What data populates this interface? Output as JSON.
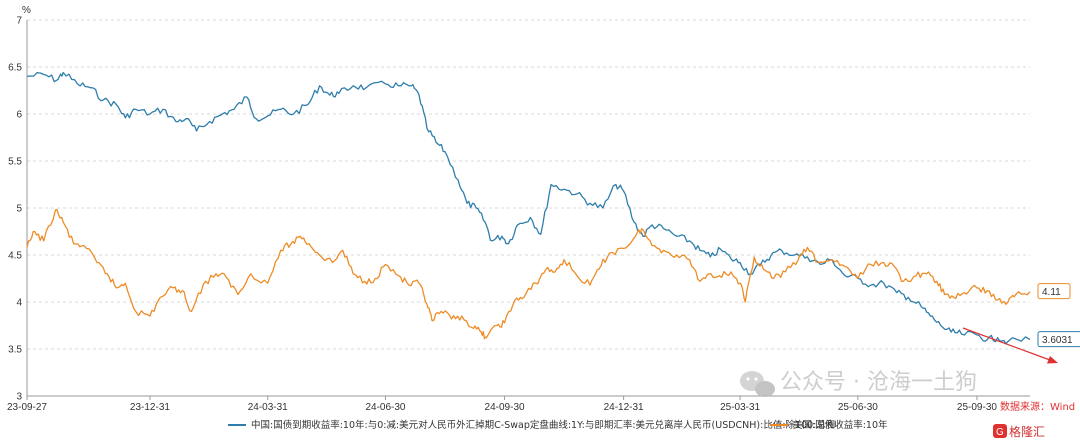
{
  "chart_data": {
    "type": "line",
    "ylabel": "%",
    "ylim": [
      3,
      7
    ],
    "yticks": [
      "3",
      "3.5",
      "4",
      "4.5",
      "5",
      "5.5",
      "6",
      "6.5",
      "7"
    ],
    "x_range": [
      "2023-09-27",
      "2025-11-10"
    ],
    "xticks": [
      {
        "date": "2023-09-27",
        "label": "23-09-27"
      },
      {
        "date": "2023-12-31",
        "label": "23-12-31"
      },
      {
        "date": "2024-03-31",
        "label": "24-03-31"
      },
      {
        "date": "2024-06-30",
        "label": "24-06-30"
      },
      {
        "date": "2024-09-30",
        "label": "24-09-30"
      },
      {
        "date": "2024-12-31",
        "label": "24-12-31"
      },
      {
        "date": "2025-03-31",
        "label": "25-03-31"
      },
      {
        "date": "2025-06-30",
        "label": "25-06-30"
      },
      {
        "date": "2025-09-30",
        "label": "25-09-30"
      }
    ],
    "grid": "horizontal",
    "legend_position": "bottom",
    "series": [
      {
        "name": "中国:国债到期收益率:10年:与0:减:美元对人民币外汇掉期C-Swap定盘曲线:1Y:与即期汇率:美元兑离岸人民币(USDCNH):比值:除100:总和",
        "color": "#2e7eab",
        "end_value": "3.6031",
        "points": [
          [
            "2023-09-27",
            6.4
          ],
          [
            "2023-10-10",
            6.42
          ],
          [
            "2023-10-20",
            6.36
          ],
          [
            "2023-10-25",
            6.44
          ],
          [
            "2023-11-05",
            6.32
          ],
          [
            "2023-11-15",
            6.28
          ],
          [
            "2023-11-25",
            6.15
          ],
          [
            "2023-12-05",
            6.1
          ],
          [
            "2023-12-12",
            5.96
          ],
          [
            "2023-12-20",
            6.05
          ],
          [
            "2023-12-31",
            6.0
          ],
          [
            "2024-01-10",
            6.05
          ],
          [
            "2024-01-20",
            5.92
          ],
          [
            "2024-01-28",
            5.95
          ],
          [
            "2024-02-05",
            5.82
          ],
          [
            "2024-02-15",
            5.92
          ],
          [
            "2024-02-25",
            6.0
          ],
          [
            "2024-03-05",
            6.05
          ],
          [
            "2024-03-15",
            6.18
          ],
          [
            "2024-03-22",
            5.95
          ],
          [
            "2024-03-31",
            5.98
          ],
          [
            "2024-04-10",
            6.05
          ],
          [
            "2024-04-20",
            6.0
          ],
          [
            "2024-05-01",
            6.1
          ],
          [
            "2024-05-10",
            6.3
          ],
          [
            "2024-05-18",
            6.2
          ],
          [
            "2024-05-25",
            6.22
          ],
          [
            "2024-06-05",
            6.3
          ],
          [
            "2024-06-15",
            6.28
          ],
          [
            "2024-06-30",
            6.32
          ],
          [
            "2024-07-10",
            6.3
          ],
          [
            "2024-07-20",
            6.3
          ],
          [
            "2024-07-26",
            6.2
          ],
          [
            "2024-08-01",
            5.85
          ],
          [
            "2024-08-08",
            5.7
          ],
          [
            "2024-08-15",
            5.6
          ],
          [
            "2024-08-25",
            5.3
          ],
          [
            "2024-09-01",
            5.05
          ],
          [
            "2024-09-08",
            5.0
          ],
          [
            "2024-09-15",
            4.85
          ],
          [
            "2024-09-20",
            4.65
          ],
          [
            "2024-09-28",
            4.7
          ],
          [
            "2024-10-03",
            4.62
          ],
          [
            "2024-10-10",
            4.82
          ],
          [
            "2024-10-20",
            4.9
          ],
          [
            "2024-10-28",
            4.72
          ],
          [
            "2024-11-05",
            5.25
          ],
          [
            "2024-11-15",
            5.2
          ],
          [
            "2024-11-25",
            5.15
          ],
          [
            "2024-12-05",
            5.05
          ],
          [
            "2024-12-15",
            5.0
          ],
          [
            "2024-12-25",
            5.25
          ],
          [
            "2024-12-31",
            5.18
          ],
          [
            "2025-01-08",
            4.85
          ],
          [
            "2025-01-15",
            4.7
          ],
          [
            "2025-01-22",
            4.82
          ],
          [
            "2025-01-31",
            4.78
          ],
          [
            "2025-02-10",
            4.7
          ],
          [
            "2025-02-20",
            4.65
          ],
          [
            "2025-02-28",
            4.55
          ],
          [
            "2025-03-08",
            4.48
          ],
          [
            "2025-03-16",
            4.56
          ],
          [
            "2025-03-24",
            4.46
          ],
          [
            "2025-03-31",
            4.42
          ],
          [
            "2025-04-08",
            4.3
          ],
          [
            "2025-04-16",
            4.4
          ],
          [
            "2025-04-24",
            4.5
          ],
          [
            "2025-05-02",
            4.55
          ],
          [
            "2025-05-12",
            4.5
          ],
          [
            "2025-05-22",
            4.48
          ],
          [
            "2025-06-01",
            4.4
          ],
          [
            "2025-06-10",
            4.45
          ],
          [
            "2025-06-20",
            4.28
          ],
          [
            "2025-06-30",
            4.25
          ],
          [
            "2025-07-10",
            4.18
          ],
          [
            "2025-07-20",
            4.2
          ],
          [
            "2025-07-30",
            4.1
          ],
          [
            "2025-08-08",
            4.05
          ],
          [
            "2025-08-18",
            3.95
          ],
          [
            "2025-08-25",
            3.85
          ],
          [
            "2025-09-02",
            3.75
          ],
          [
            "2025-09-10",
            3.68
          ],
          [
            "2025-09-18",
            3.66
          ],
          [
            "2025-09-30",
            3.65
          ],
          [
            "2025-10-08",
            3.6
          ],
          [
            "2025-10-16",
            3.62
          ],
          [
            "2025-10-24",
            3.58
          ],
          [
            "2025-11-10",
            3.6
          ]
        ]
      },
      {
        "name": "美国:国债收益率:10年",
        "color": "#ed8c26",
        "end_value": "4.11",
        "points": [
          [
            "2023-09-27",
            4.58
          ],
          [
            "2023-10-03",
            4.75
          ],
          [
            "2023-10-10",
            4.65
          ],
          [
            "2023-10-19",
            4.98
          ],
          [
            "2023-10-25",
            4.85
          ],
          [
            "2023-11-02",
            4.62
          ],
          [
            "2023-11-10",
            4.6
          ],
          [
            "2023-11-20",
            4.42
          ],
          [
            "2023-11-28",
            4.3
          ],
          [
            "2023-12-05",
            4.15
          ],
          [
            "2023-12-12",
            4.2
          ],
          [
            "2023-12-20",
            3.9
          ],
          [
            "2023-12-31",
            3.85
          ],
          [
            "2024-01-08",
            4.05
          ],
          [
            "2024-01-18",
            4.15
          ],
          [
            "2024-01-25",
            4.12
          ],
          [
            "2024-02-01",
            3.9
          ],
          [
            "2024-02-10",
            4.18
          ],
          [
            "2024-02-20",
            4.3
          ],
          [
            "2024-02-28",
            4.26
          ],
          [
            "2024-03-08",
            4.08
          ],
          [
            "2024-03-18",
            4.3
          ],
          [
            "2024-03-31",
            4.2
          ],
          [
            "2024-04-10",
            4.55
          ],
          [
            "2024-04-18",
            4.62
          ],
          [
            "2024-04-25",
            4.7
          ],
          [
            "2024-05-02",
            4.62
          ],
          [
            "2024-05-10",
            4.5
          ],
          [
            "2024-05-20",
            4.42
          ],
          [
            "2024-05-28",
            4.55
          ],
          [
            "2024-06-05",
            4.3
          ],
          [
            "2024-06-14",
            4.22
          ],
          [
            "2024-06-22",
            4.25
          ],
          [
            "2024-06-30",
            4.4
          ],
          [
            "2024-07-10",
            4.28
          ],
          [
            "2024-07-18",
            4.18
          ],
          [
            "2024-07-26",
            4.2
          ],
          [
            "2024-08-01",
            3.98
          ],
          [
            "2024-08-05",
            3.8
          ],
          [
            "2024-08-12",
            3.9
          ],
          [
            "2024-08-20",
            3.82
          ],
          [
            "2024-08-28",
            3.85
          ],
          [
            "2024-09-06",
            3.72
          ],
          [
            "2024-09-12",
            3.68
          ],
          [
            "2024-09-16",
            3.62
          ],
          [
            "2024-09-24",
            3.75
          ],
          [
            "2024-09-30",
            3.78
          ],
          [
            "2024-10-08",
            4.02
          ],
          [
            "2024-10-15",
            4.05
          ],
          [
            "2024-10-24",
            4.2
          ],
          [
            "2024-11-01",
            4.35
          ],
          [
            "2024-11-08",
            4.32
          ],
          [
            "2024-11-15",
            4.45
          ],
          [
            "2024-11-25",
            4.28
          ],
          [
            "2024-12-05",
            4.18
          ],
          [
            "2024-12-12",
            4.35
          ],
          [
            "2024-12-20",
            4.52
          ],
          [
            "2024-12-31",
            4.57
          ],
          [
            "2025-01-08",
            4.68
          ],
          [
            "2025-01-14",
            4.78
          ],
          [
            "2025-01-22",
            4.6
          ],
          [
            "2025-01-31",
            4.55
          ],
          [
            "2025-02-10",
            4.5
          ],
          [
            "2025-02-20",
            4.45
          ],
          [
            "2025-02-28",
            4.22
          ],
          [
            "2025-03-07",
            4.3
          ],
          [
            "2025-03-15",
            4.28
          ],
          [
            "2025-03-24",
            4.32
          ],
          [
            "2025-03-31",
            4.2
          ],
          [
            "2025-04-04",
            4.0
          ],
          [
            "2025-04-11",
            4.48
          ],
          [
            "2025-04-18",
            4.35
          ],
          [
            "2025-04-26",
            4.25
          ],
          [
            "2025-05-05",
            4.32
          ],
          [
            "2025-05-15",
            4.45
          ],
          [
            "2025-05-22",
            4.58
          ],
          [
            "2025-05-30",
            4.42
          ],
          [
            "2025-06-10",
            4.45
          ],
          [
            "2025-06-20",
            4.38
          ],
          [
            "2025-06-30",
            4.25
          ],
          [
            "2025-07-10",
            4.4
          ],
          [
            "2025-07-20",
            4.42
          ],
          [
            "2025-07-28",
            4.38
          ],
          [
            "2025-08-04",
            4.22
          ],
          [
            "2025-08-14",
            4.28
          ],
          [
            "2025-08-22",
            4.3
          ],
          [
            "2025-08-30",
            4.22
          ],
          [
            "2025-09-05",
            4.08
          ],
          [
            "2025-09-12",
            4.05
          ],
          [
            "2025-09-20",
            4.1
          ],
          [
            "2025-09-30",
            4.15
          ],
          [
            "2025-10-08",
            4.12
          ],
          [
            "2025-10-16",
            4.02
          ],
          [
            "2025-10-24",
            4.0
          ],
          [
            "2025-10-30",
            4.08
          ],
          [
            "2025-11-10",
            4.11
          ]
        ]
      }
    ]
  },
  "source_text": "数据来源：Wind",
  "watermark": {
    "wechat_text": "公众号 · 沧海一土狗",
    "logo_text": "格隆汇",
    "wechat_icon": "wechat-icon",
    "logo_icon": "gelonghui-logo"
  },
  "annotation_arrow_color": "#e03030"
}
